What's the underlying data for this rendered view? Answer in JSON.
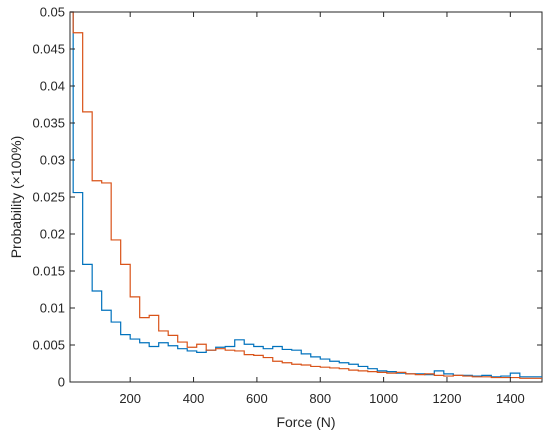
{
  "chart_data": {
    "type": "line",
    "style": "stairs-histogram",
    "xlabel": "Force (N)",
    "ylabel": "Probability (×100%)",
    "xlim": [
      10,
      1500
    ],
    "ylim": [
      0,
      0.05
    ],
    "grid": false,
    "x_ticks": [
      200,
      400,
      600,
      800,
      1000,
      1200,
      1400
    ],
    "x_tick_labels": [
      "200",
      "400",
      "600",
      "800",
      "1000",
      "1200",
      "1400"
    ],
    "y_ticks": [
      0,
      0.005,
      0.01,
      0.015,
      0.02,
      0.025,
      0.03,
      0.035,
      0.04,
      0.045,
      0.05
    ],
    "y_tick_labels": [
      "0",
      "0.005",
      "0.01",
      "0.015",
      "0.02",
      "0.025",
      "0.03",
      "0.035",
      "0.04",
      "0.045",
      "0.05"
    ],
    "bin_edges": [
      10,
      15,
      20,
      25,
      30,
      35,
      40,
      45,
      50,
      55,
      60,
      65,
      70,
      75,
      80,
      85,
      90,
      95,
      100,
      105,
      110,
      115,
      120,
      125,
      130,
      135,
      140,
      145,
      150,
      155,
      160,
      165,
      170,
      175,
      180,
      185,
      190,
      195,
      200,
      205,
      210,
      215,
      220,
      225,
      230,
      235,
      240,
      245,
      250,
      255,
      260,
      265,
      270,
      275,
      280,
      285,
      290,
      295,
      300,
      305,
      310,
      315,
      320,
      325,
      330,
      335,
      340,
      345,
      350,
      355,
      360,
      365,
      370,
      375,
      380,
      385,
      390,
      395,
      400,
      405,
      410,
      415,
      420,
      425,
      430,
      435,
      440,
      445,
      450,
      455,
      460,
      465,
      470,
      475,
      480,
      485,
      490,
      495,
      500,
      505,
      510,
      515,
      520,
      525,
      530,
      535,
      540,
      545,
      550,
      555,
      560,
      565,
      570,
      575,
      580,
      585,
      590,
      595,
      600,
      605,
      610,
      615,
      620,
      625,
      630,
      635,
      640,
      645,
      650,
      655,
      660,
      665,
      670,
      675,
      680,
      685,
      690,
      695,
      700,
      705,
      710,
      715,
      720,
      725,
      730,
      735,
      740,
      745,
      750,
      755,
      760,
      765,
      770,
      775,
      780,
      785,
      790,
      795,
      800,
      805,
      810,
      815,
      820,
      825,
      830,
      835,
      840,
      845,
      850,
      855,
      860,
      865,
      870,
      875,
      880,
      885,
      890,
      895,
      900,
      905,
      910,
      915,
      920,
      925,
      930,
      935,
      940,
      945,
      950,
      955,
      960,
      965,
      970,
      975,
      980,
      985,
      990,
      995,
      1000,
      1005,
      1010,
      1015,
      1020,
      1025,
      1030,
      1035,
      1040,
      1045,
      1050,
      1055,
      1060,
      1065,
      1070,
      1075,
      1080,
      1085,
      1090,
      1095,
      1100,
      1105,
      1110,
      1115,
      1120,
      1125,
      1130,
      1135,
      1140,
      1145,
      1150,
      1155,
      1160,
      1165,
      1170,
      1175,
      1180,
      1185,
      1190,
      1195,
      1200,
      1205,
      1210,
      1215,
      1220,
      1225,
      1230,
      1235,
      1240,
      1245,
      1250,
      1255,
      1260,
      1265,
      1270,
      1275,
      1280,
      1285,
      1290,
      1295,
      1300,
      1305,
      1310,
      1315,
      1320,
      1325,
      1330,
      1335,
      1340,
      1345,
      1350,
      1355,
      1360,
      1365,
      1370,
      1375,
      1380,
      1385,
      1390,
      1395,
      1400,
      1405,
      1410,
      1415,
      1420,
      1425,
      1430,
      1435,
      1440,
      1445,
      1450,
      1455,
      1460,
      1465,
      1470,
      1475,
      1480,
      1485,
      1490,
      1495,
      1500
    ],
    "series": [
      {
        "color": "#0072BD",
        "edges": [
          10,
          20,
          50,
          80,
          110,
          140,
          170,
          200,
          230,
          260,
          290,
          320,
          350,
          380,
          410,
          440,
          470,
          500,
          530,
          560,
          590,
          620,
          650,
          680,
          710,
          740,
          770,
          800,
          830,
          860,
          890,
          920,
          950,
          980,
          1010,
          1040,
          1070,
          1100,
          1130,
          1160,
          1190,
          1220,
          1250,
          1280,
          1310,
          1340,
          1370,
          1400,
          1430,
          1460,
          1500
        ],
        "values": [
          0.05,
          0.0256,
          0.0159,
          0.0123,
          0.0097,
          0.0081,
          0.0064,
          0.0058,
          0.0053,
          0.0048,
          0.0053,
          0.0049,
          0.0045,
          0.0042,
          0.004,
          0.0043,
          0.0047,
          0.0048,
          0.0057,
          0.0051,
          0.0048,
          0.0045,
          0.0048,
          0.0044,
          0.0043,
          0.0038,
          0.0034,
          0.0031,
          0.0028,
          0.0026,
          0.0024,
          0.0021,
          0.0018,
          0.0015,
          0.0014,
          0.0012,
          0.0011,
          0.0011,
          0.001,
          0.0015,
          0.0011,
          0.0009,
          0.0009,
          0.0008,
          0.0009,
          0.0007,
          0.0008,
          0.0012,
          0.0007,
          0.0007
        ]
      },
      {
        "color": "#D95319",
        "edges": [
          10,
          20,
          50,
          80,
          110,
          140,
          170,
          200,
          230,
          260,
          290,
          320,
          350,
          380,
          410,
          440,
          470,
          500,
          530,
          560,
          590,
          620,
          650,
          680,
          710,
          740,
          770,
          800,
          830,
          860,
          890,
          920,
          950,
          980,
          1010,
          1040,
          1070,
          1100,
          1130,
          1160,
          1190,
          1220,
          1250,
          1280,
          1310,
          1340,
          1370,
          1400,
          1430,
          1460,
          1500
        ],
        "values": [
          0.05,
          0.0472,
          0.0365,
          0.0272,
          0.0269,
          0.0192,
          0.0159,
          0.0115,
          0.0087,
          0.009,
          0.0069,
          0.0063,
          0.0054,
          0.0047,
          0.0051,
          0.0043,
          0.0045,
          0.0043,
          0.0042,
          0.0037,
          0.0036,
          0.0033,
          0.0028,
          0.0026,
          0.0024,
          0.0023,
          0.0021,
          0.002,
          0.0019,
          0.0018,
          0.0016,
          0.0015,
          0.0014,
          0.0013,
          0.0012,
          0.0013,
          0.0011,
          0.001,
          0.0011,
          0.0009,
          0.0008,
          0.0009,
          0.0008,
          0.0007,
          0.0007,
          0.0006,
          0.0006,
          0.0006,
          0.0005,
          0.0005
        ]
      }
    ]
  }
}
